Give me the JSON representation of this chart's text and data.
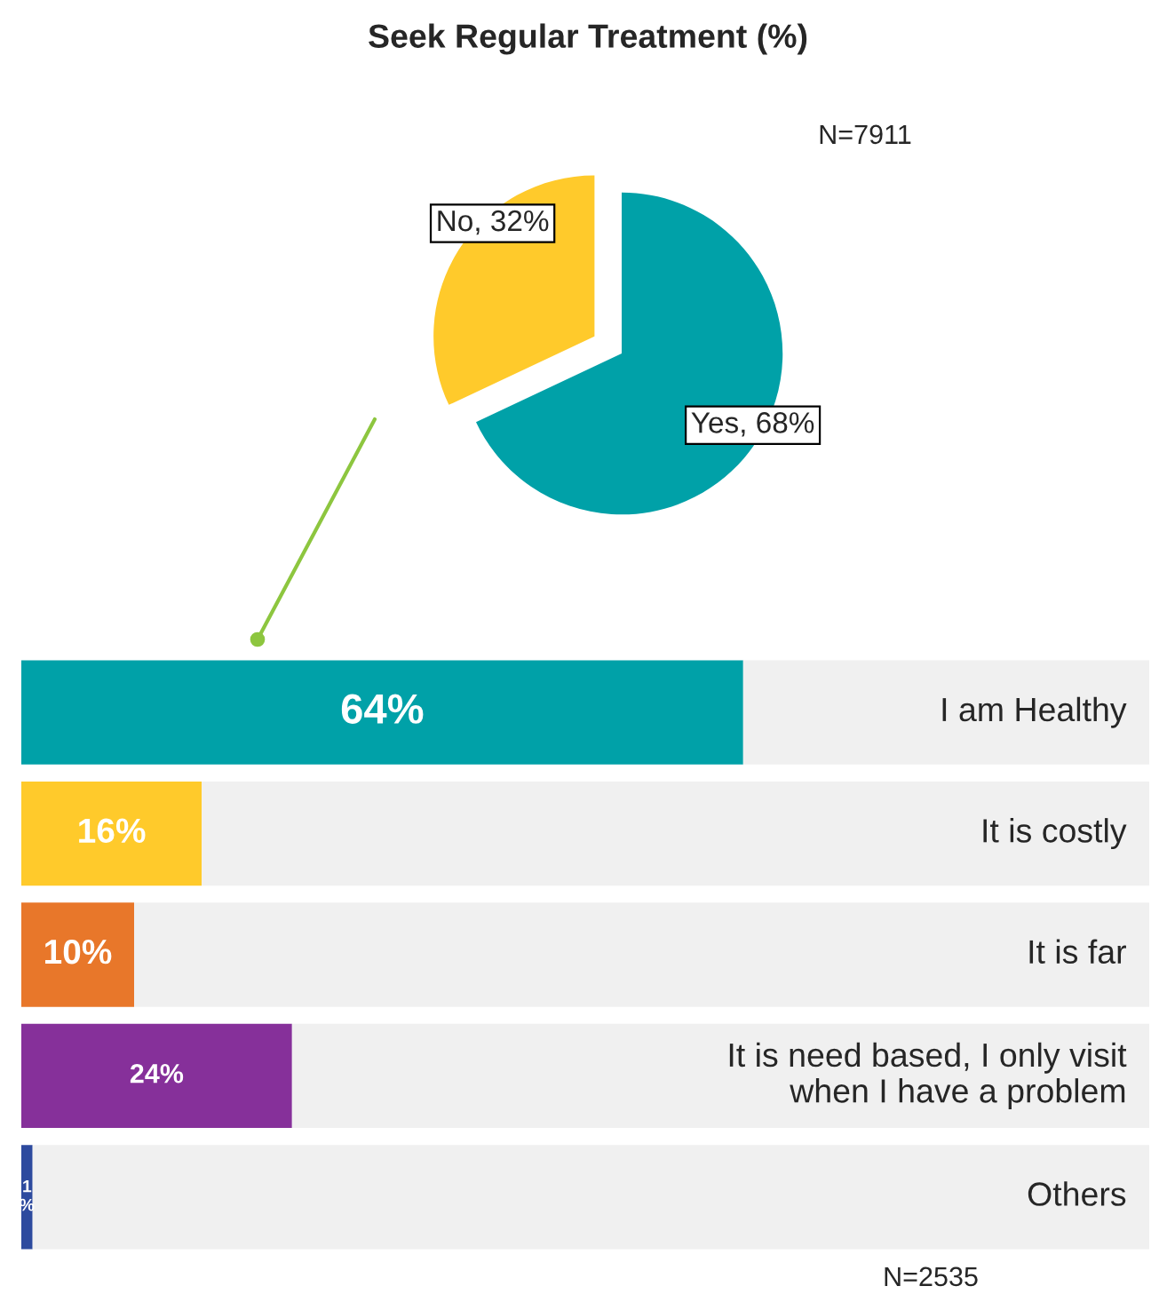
{
  "chart_data": [
    {
      "type": "pie",
      "title": "Seek Regular Treatment (%)",
      "categories": [
        "Yes",
        "No"
      ],
      "values": [
        68,
        32
      ],
      "colors": [
        "#00a1a8",
        "#ffca2b"
      ],
      "value_labels": [
        "68%",
        "32%"
      ],
      "annotations": [
        "N=7911"
      ]
    },
    {
      "type": "bar",
      "orientation": "horizontal",
      "stacked": true,
      "categories": [
        "I am Healthy",
        "It is costly",
        "It is far",
        "It is need based, I only visit\nwhen I have a problem",
        "Others"
      ],
      "series": [
        {
          "colors": [
            "#00a1a8",
            "#ffca2b",
            "#e8772a",
            "#86309a",
            "#2d4a9e"
          ],
          "values": [
            64,
            16,
            10,
            24,
            1
          ],
          "value_labels": [
            "64%",
            "16%",
            "10%",
            "24%",
            "1\n%"
          ]
        },
        {
          "color": "#f0f0f0",
          "values": [
            36,
            84,
            90,
            76,
            99
          ]
        }
      ],
      "xlim": [
        0,
        100
      ],
      "tick_labels": false,
      "annotations": [
        "N=2535"
      ]
    }
  ]
}
